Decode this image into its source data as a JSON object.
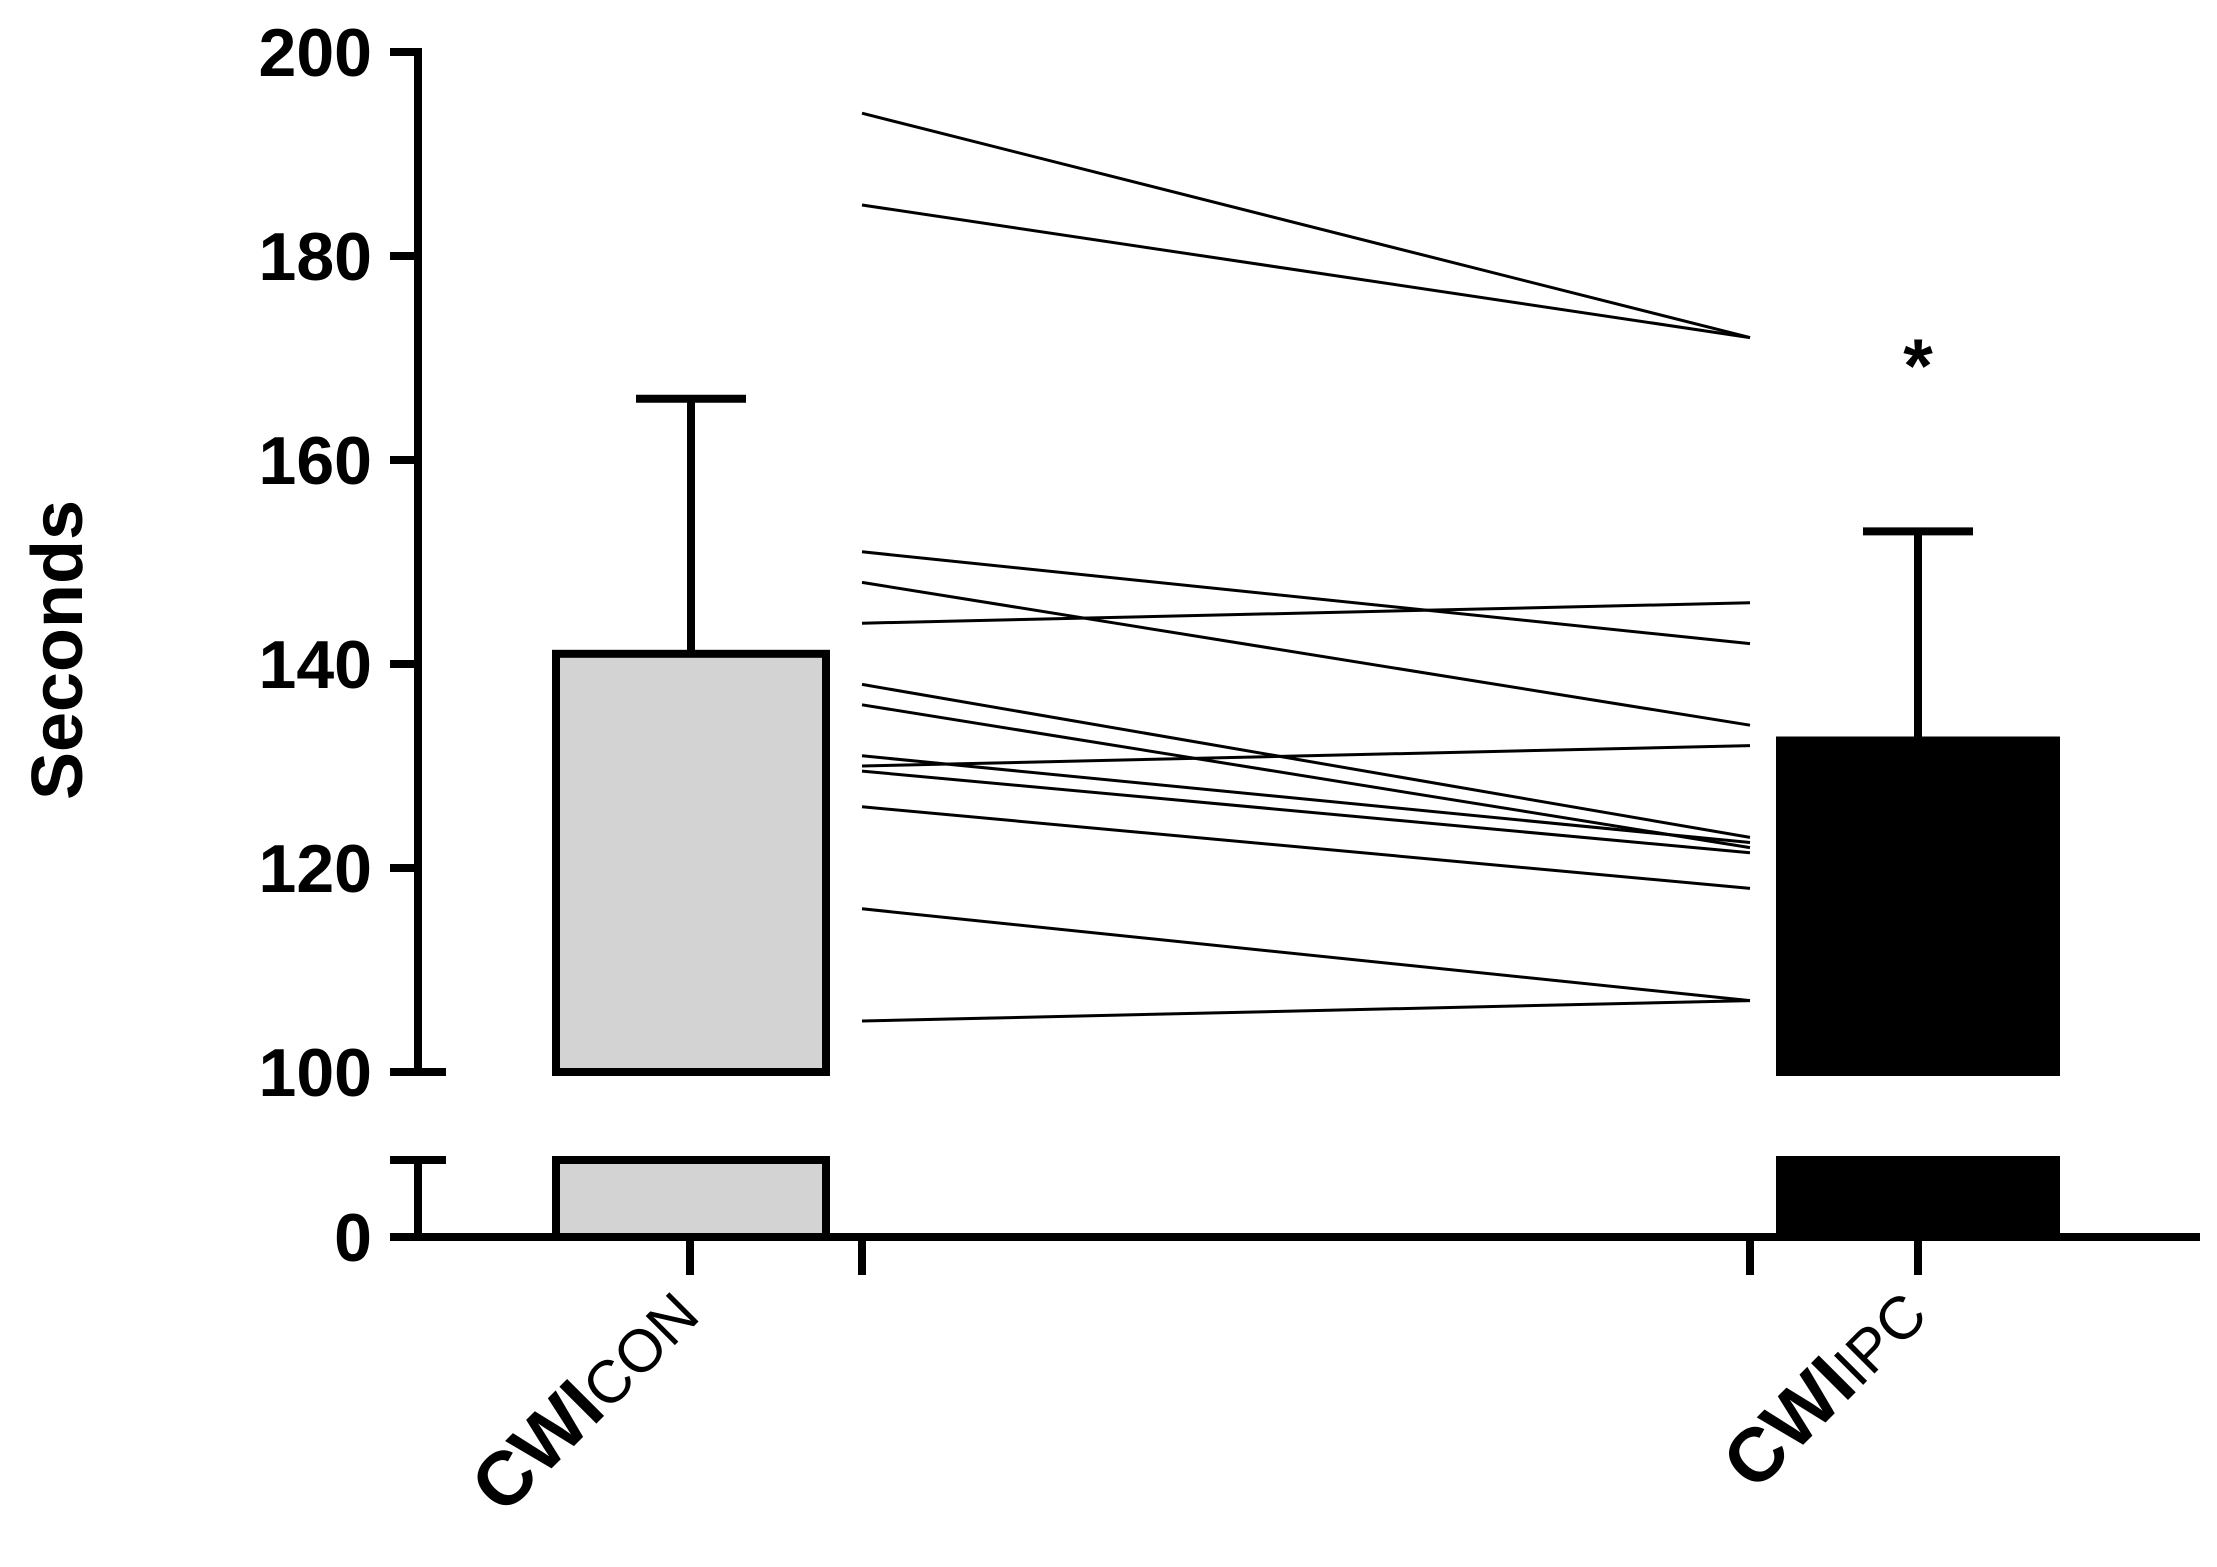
{
  "chart_data": {
    "type": "bar",
    "ylabel": "Seconds",
    "y_ticks": [
      "200",
      "180",
      "160",
      "140",
      "120",
      "100",
      "0"
    ],
    "ylim": [
      0,
      200
    ],
    "axis_break": [
      10,
      100
    ],
    "colors": {
      "CWIcon": "#d3d3d3",
      "CWIipc": "#000000",
      "stroke": "#000000"
    },
    "categories": [
      {
        "main": "CWI",
        "sub": "CON",
        "mean": 141,
        "sd_upper": 166,
        "color": "#d3d3d3"
      },
      {
        "main": "CWI",
        "sub": "IPC",
        "mean": 132.5,
        "sd_upper": 153,
        "color": "#000000"
      }
    ],
    "paired_values": [
      [
        194,
        172
      ],
      [
        185,
        172
      ],
      [
        151,
        142
      ],
      [
        148,
        134
      ],
      [
        144,
        146
      ],
      [
        138,
        123
      ],
      [
        136,
        122
      ],
      [
        131,
        122.5
      ],
      [
        130,
        132
      ],
      [
        129.5,
        121.5
      ],
      [
        126,
        118
      ],
      [
        116,
        107
      ],
      [
        105,
        107
      ]
    ],
    "annotation": "*"
  }
}
